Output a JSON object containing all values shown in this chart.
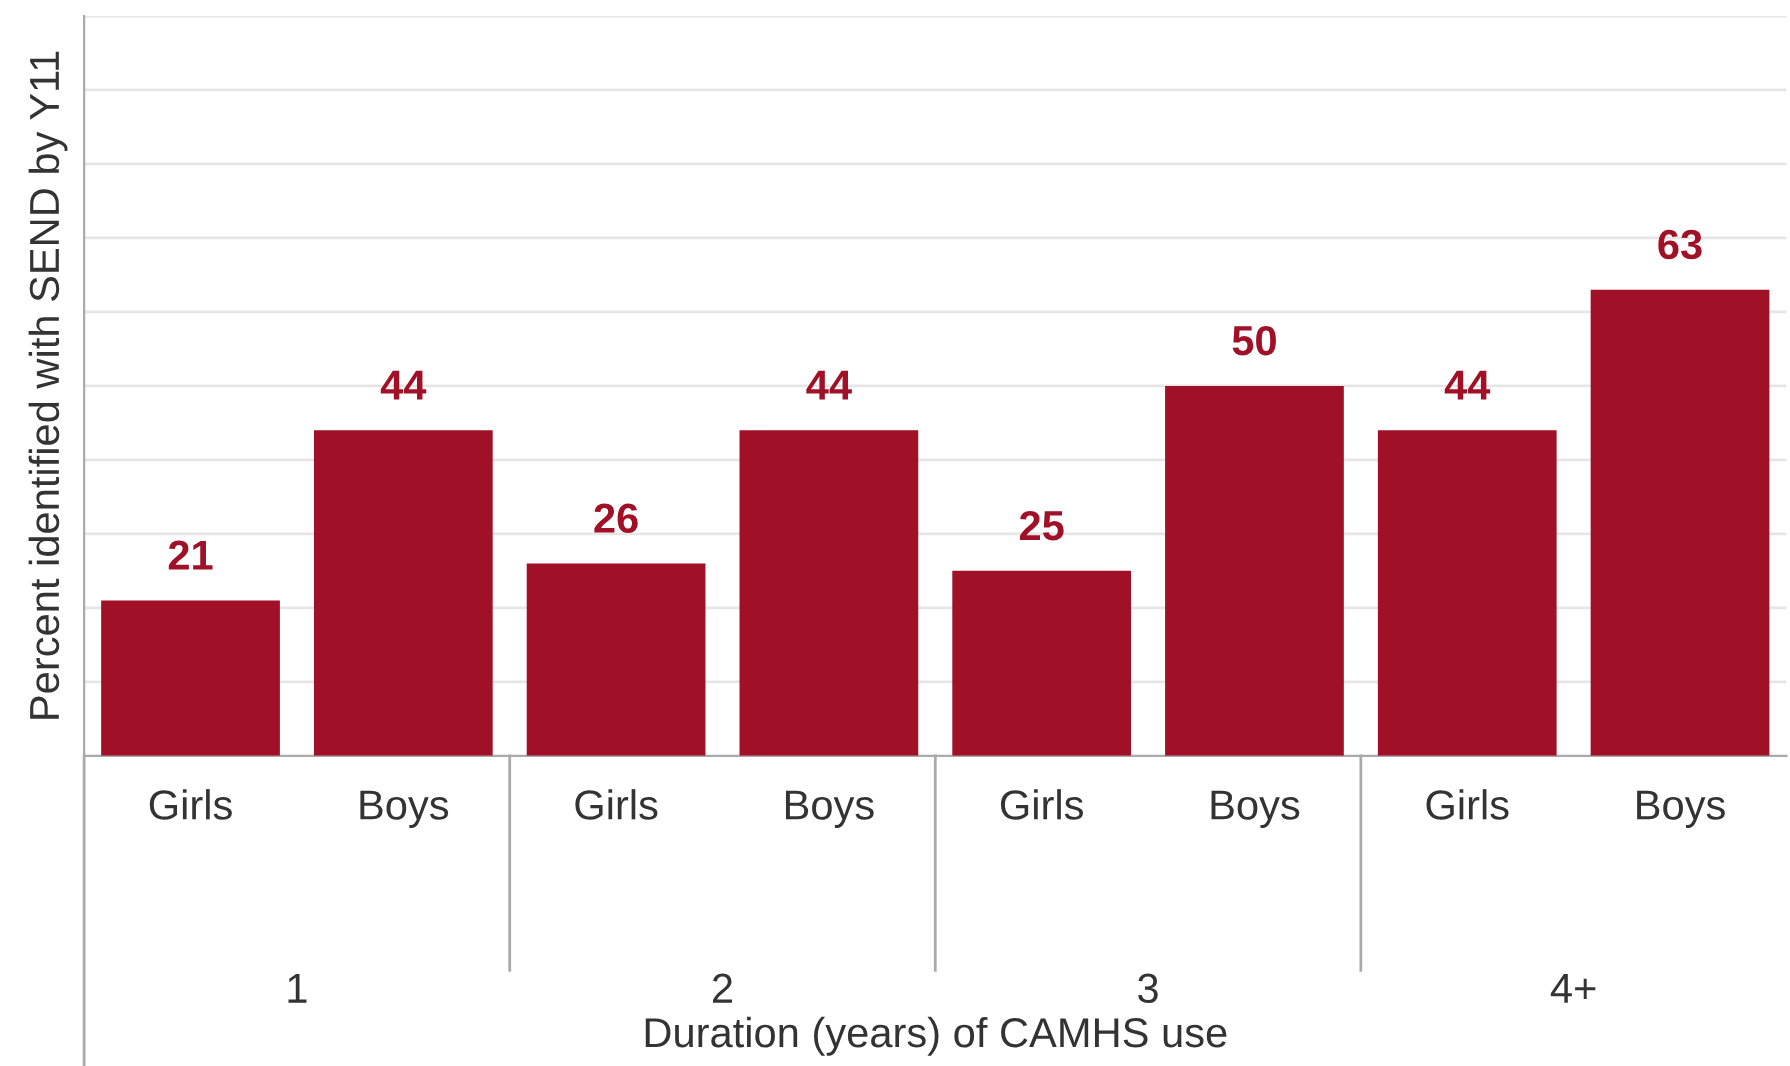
{
  "chart_data": {
    "type": "bar",
    "xlabel": "Duration (years) of CAMHS use",
    "ylabel": "Percent identified with SEND by Y11",
    "categories": [
      "Girls",
      "Boys",
      "Girls",
      "Boys",
      "Girls",
      "Boys",
      "Girls",
      "Boys"
    ],
    "values": [
      21,
      44,
      26,
      44,
      25,
      50,
      44,
      63
    ],
    "color": "#a01127",
    "annotations": [
      "1",
      "2",
      "3",
      "4+"
    ],
    "ylim": [
      0,
      100
    ],
    "yticks": [
      {
        "value": 10,
        "label": null
      },
      {
        "value": 20,
        "label": null
      },
      {
        "value": 30,
        "label": null
      },
      {
        "value": 40,
        "label": null
      },
      {
        "value": 50,
        "label": null
      },
      {
        "value": 60,
        "label": null
      },
      {
        "value": 70,
        "label": null
      },
      {
        "value": 80,
        "label": null
      },
      {
        "value": 90,
        "label": null
      },
      {
        "value": 100,
        "label": null
      }
    ],
    "tick_labels": "x",
    "grid": "y",
    "data_labels": true,
    "legend": false
  }
}
